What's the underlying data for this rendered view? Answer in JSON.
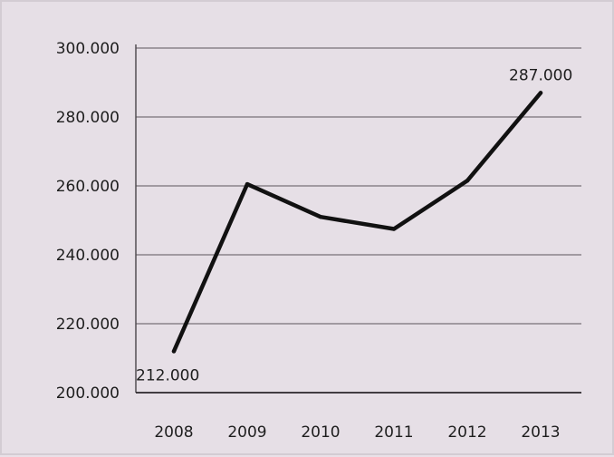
{
  "chart_data": {
    "type": "line",
    "title": "",
    "xlabel": "",
    "ylabel": "",
    "categories": [
      "2008",
      "2009",
      "2010",
      "2011",
      "2012",
      "2013"
    ],
    "series": [
      {
        "values": [
          212000,
          260500,
          251000,
          247500,
          261500,
          287000
        ]
      }
    ],
    "ylim": [
      200000,
      300000
    ],
    "yticks": [
      200000,
      220000,
      240000,
      260000,
      280000,
      300000
    ],
    "ytick_labels": [
      "200.000",
      "220.000",
      "240.000",
      "260.000",
      "280.000",
      "300.000"
    ],
    "data_labels": [
      {
        "index": 0,
        "text": "212.000"
      },
      {
        "index": 5,
        "text": "287.000"
      }
    ],
    "grid": true,
    "legend": "none",
    "line_color": "#111111",
    "grid_color": "#8a848a"
  }
}
